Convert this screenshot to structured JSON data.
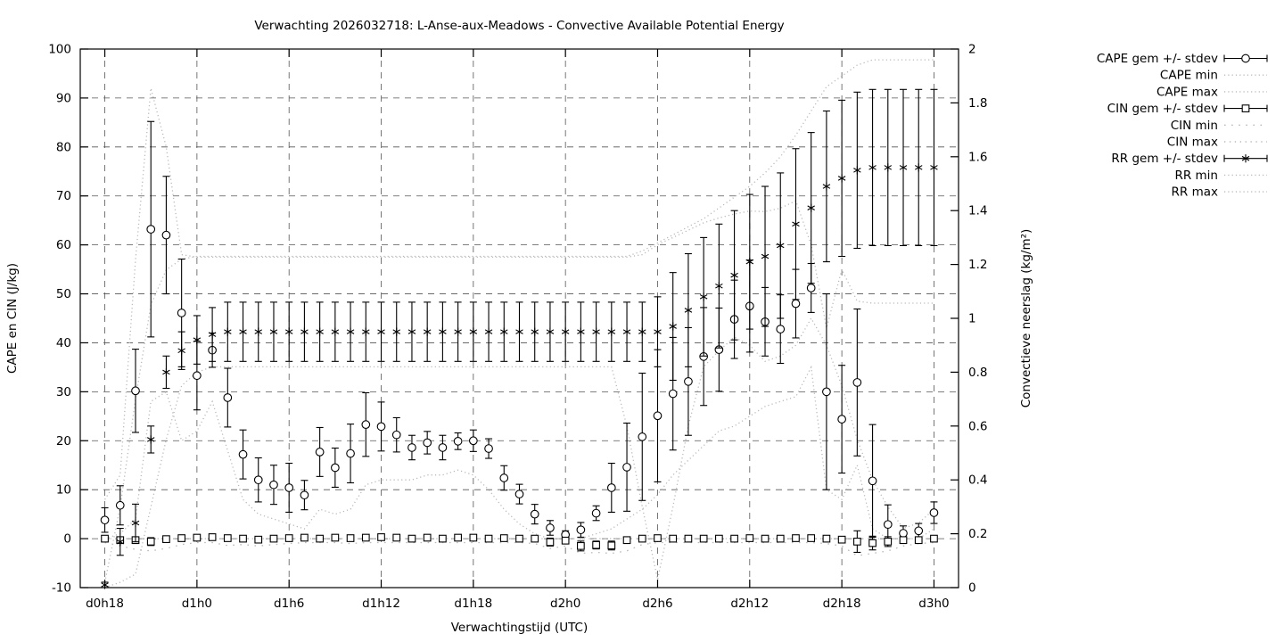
{
  "title": "Verwachting 2026032718: L-Anse-aux-Meadows - Convective Available Potential Energy",
  "axes": {
    "x_label": "Verwachtingstijd (UTC)",
    "y_left_label": "CAPE en CIN (J/kg)",
    "y_right_label": "Convectieve neerslag (kg/m²)",
    "y_left_range": [
      -10,
      100
    ],
    "y_right_range": [
      0,
      2
    ],
    "x_ticks": [
      {
        "hour": 18,
        "label": "d0h18"
      },
      {
        "hour": 24,
        "label": "d1h0"
      },
      {
        "hour": 30,
        "label": "d1h6"
      },
      {
        "hour": 36,
        "label": "d1h12"
      },
      {
        "hour": 42,
        "label": "d1h18"
      },
      {
        "hour": 48,
        "label": "d2h0"
      },
      {
        "hour": 54,
        "label": "d2h6"
      },
      {
        "hour": 60,
        "label": "d2h12"
      },
      {
        "hour": 66,
        "label": "d2h18"
      },
      {
        "hour": 72,
        "label": "d3h0"
      }
    ],
    "y_left_ticks": [
      {
        "v": -10,
        "label": "-10"
      },
      {
        "v": 0,
        "label": "0"
      },
      {
        "v": 10,
        "label": "10"
      },
      {
        "v": 20,
        "label": "20"
      },
      {
        "v": 30,
        "label": "30"
      },
      {
        "v": 40,
        "label": "40"
      },
      {
        "v": 50,
        "label": "50"
      },
      {
        "v": 60,
        "label": "60"
      },
      {
        "v": 70,
        "label": "70"
      },
      {
        "v": 80,
        "label": "80"
      },
      {
        "v": 90,
        "label": "90"
      },
      {
        "v": 100,
        "label": "100"
      }
    ],
    "y_right_ticks": [
      {
        "v": 0,
        "label": "0"
      },
      {
        "v": 0.2,
        "label": "0.2"
      },
      {
        "v": 0.4,
        "label": "0.4"
      },
      {
        "v": 0.6,
        "label": "0.6"
      },
      {
        "v": 0.8,
        "label": "0.8"
      },
      {
        "v": 1,
        "label": "1"
      },
      {
        "v": 1.2,
        "label": "1.2"
      },
      {
        "v": 1.4,
        "label": "1.4"
      },
      {
        "v": 1.6,
        "label": "1.6"
      },
      {
        "v": 1.8,
        "label": "1.8"
      },
      {
        "v": 2,
        "label": "2"
      }
    ],
    "grid": true,
    "legend_position": "outside-right"
  },
  "colors": {
    "foreground": "#000000",
    "envelope_dotted": "#b9b9b9",
    "grid": "#555555",
    "background": "#ffffff"
  },
  "legend": [
    {
      "label": "CAPE gem +/- stdev",
      "sample": "errorbar",
      "marker": "circle"
    },
    {
      "label": "CAPE min",
      "sample": "dotted",
      "series": "cape_min"
    },
    {
      "label": "CAPE max",
      "sample": "dotted",
      "series": "cape_max"
    },
    {
      "label": "CIN gem +/- stdev",
      "sample": "errorbar",
      "marker": "square"
    },
    {
      "label": "CIN min",
      "sample": "dotted-sparse",
      "series": "cin_min"
    },
    {
      "label": "CIN max",
      "sample": "dotted-mid",
      "series": "cin_max"
    },
    {
      "label": "RR gem +/- stdev",
      "sample": "errorbar",
      "marker": "asterisk"
    },
    {
      "label": "RR min",
      "sample": "dotted",
      "series": "rr_min"
    },
    {
      "label": "RR max",
      "sample": "dotted",
      "series": "rr_max"
    }
  ],
  "chart_data": {
    "type": "line",
    "title": "Verwachting 2026032718: L-Anse-aux-Meadows - Convective Available Potential Energy",
    "xlabel": "Verwachtingstijd (UTC)",
    "ylabel_left": "CAPE en CIN (J/kg)",
    "ylabel_right": "Convectieve neerslag (kg/m²)",
    "ylim_left": [
      -10,
      100
    ],
    "ylim_right": [
      0,
      2
    ],
    "xlim_hours": [
      16.4,
      73.6
    ],
    "x_hours": [
      18,
      19,
      20,
      21,
      22,
      23,
      24,
      25,
      26,
      27,
      28,
      29,
      30,
      31,
      32,
      33,
      34,
      35,
      36,
      37,
      38,
      39,
      40,
      41,
      42,
      43,
      44,
      45,
      46,
      47,
      48,
      49,
      50,
      51,
      52,
      53,
      54,
      55,
      56,
      57,
      58,
      59,
      60,
      61,
      62,
      63,
      64,
      65,
      66,
      67,
      68,
      69,
      70,
      71,
      72
    ],
    "series": [
      {
        "key": "cape_mean",
        "name": "CAPE gem +/- stdev",
        "axis": "left",
        "style": "errorbar",
        "marker": "circle",
        "mean": [
          3.8,
          6.8,
          30.2,
          63.2,
          62.0,
          46.1,
          33.3,
          38.5,
          28.8,
          17.2,
          12.0,
          11.0,
          10.4,
          8.9,
          17.7,
          14.5,
          17.4,
          23.3,
          22.9,
          21.2,
          18.6,
          19.6,
          18.6,
          19.9,
          20.0,
          18.4,
          12.4,
          9.1,
          5.0,
          2.2,
          0.8,
          1.8,
          5.2,
          10.4,
          14.6,
          20.8,
          25.1,
          29.6,
          32.1,
          37.2,
          38.6,
          44.8,
          47.5,
          44.3,
          42.8,
          48.0,
          51.2,
          30.0,
          24.4,
          31.9,
          11.8,
          2.9,
          1.1,
          1.6,
          5.3
        ],
        "stdev": [
          2.5,
          4.0,
          8.5,
          22.0,
          12.0,
          11.0,
          7.0,
          3.5,
          6.0,
          5.0,
          4.5,
          4.0,
          5.0,
          3.0,
          5.0,
          4.0,
          6.0,
          6.5,
          5.0,
          3.5,
          2.5,
          2.3,
          2.5,
          1.7,
          2.2,
          2.0,
          2.5,
          2.0,
          2.0,
          1.5,
          0.8,
          1.5,
          1.5,
          5.0,
          9.0,
          13.0,
          13.5,
          11.5,
          11.0,
          10.0,
          8.5,
          8.0,
          9.4,
          7.0,
          7.0,
          7.0,
          5.0,
          20.0,
          11.0,
          15.0,
          11.5,
          4.0,
          1.5,
          1.5,
          2.2
        ]
      },
      {
        "key": "cape_min",
        "name": "CAPE min",
        "axis": "left",
        "style": "dotted",
        "values": [
          0,
          1,
          4,
          28,
          30,
          20,
          22,
          28,
          18,
          8,
          5,
          4,
          3,
          2,
          6,
          5,
          6,
          11,
          12,
          12,
          12,
          13,
          13,
          14,
          13,
          10,
          6,
          3,
          1,
          0,
          0,
          0,
          1,
          2,
          4,
          6,
          9,
          13,
          16,
          19,
          22,
          23,
          25,
          27,
          28,
          29,
          35,
          10,
          8,
          15,
          2,
          0,
          0,
          0,
          2
        ]
      },
      {
        "key": "cape_max",
        "name": "CAPE max",
        "axis": "left",
        "style": "dotted",
        "values": [
          8,
          13,
          57,
          92,
          80,
          58,
          57.5,
          57.5,
          57.5,
          57.5,
          57.5,
          57.5,
          57.5,
          57.5,
          57.5,
          57.5,
          57.5,
          57.5,
          57.5,
          57.5,
          57.5,
          57.5,
          57.5,
          57.5,
          57.5,
          57.5,
          57.5,
          57.5,
          57.5,
          57.5,
          57.5,
          57.5,
          57.5,
          57.5,
          57.5,
          58,
          60,
          61.5,
          63,
          64.5,
          65.5,
          66.3,
          66.9,
          66.8,
          67.5,
          69,
          60,
          43,
          55,
          48.5,
          48.1,
          48.1,
          48.1,
          48.1,
          48.1
        ]
      },
      {
        "key": "cin_mean",
        "name": "CIN gem +/- stdev",
        "axis": "left",
        "style": "errorbar",
        "marker": "square",
        "mean": [
          0,
          -0.3,
          -0.3,
          -0.6,
          -0.1,
          0.1,
          0.2,
          0.3,
          0.1,
          0,
          -0.2,
          0,
          0.1,
          0.2,
          0,
          0.2,
          0.1,
          0.2,
          0.3,
          0.2,
          0,
          0.2,
          0,
          0.2,
          0.2,
          0,
          0.1,
          0,
          0,
          -0.7,
          -0.4,
          -1.5,
          -1.3,
          -1.4,
          -0.3,
          0,
          0.1,
          0,
          0,
          0,
          0,
          0,
          0.1,
          0,
          0,
          0.1,
          0.1,
          0,
          -0.2,
          -0.6,
          -0.9,
          -0.6,
          -0.3,
          -0.3,
          0
        ],
        "stdev": [
          0.1,
          0.3,
          0.5,
          0.8,
          0.4,
          0.2,
          0.15,
          0.15,
          0.4,
          0.2,
          0.3,
          0.15,
          0.15,
          0.15,
          0.15,
          0.15,
          0.15,
          0.15,
          0.15,
          0.15,
          0.15,
          0.15,
          0.15,
          0.15,
          0.15,
          0.15,
          0.15,
          0.15,
          0.2,
          0.8,
          0.5,
          1.0,
          0.8,
          0.9,
          0.4,
          0.2,
          0.15,
          0.15,
          0.15,
          0.15,
          0.15,
          0.15,
          0.15,
          0.15,
          0.15,
          0.15,
          0.15,
          0.2,
          0.5,
          2.2,
          1.4,
          1.0,
          0.5,
          0.4,
          0.2
        ]
      },
      {
        "key": "cin_min",
        "name": "CIN min",
        "axis": "left",
        "style": "dotted-sparse",
        "values": [
          -0.8,
          -1.5,
          -2.2,
          -2.5,
          -2.0,
          -1.2,
          -0.8,
          -0.8,
          -1.4,
          -1.2,
          -1.5,
          -1.2,
          -1.0,
          -0.8,
          -0.8,
          -0.8,
          -1.0,
          -0.8,
          -0.8,
          -0.8,
          -0.8,
          -0.8,
          -0.8,
          -0.8,
          -0.8,
          -0.8,
          -0.8,
          -0.8,
          -1.0,
          -2.0,
          -1.5,
          -3.0,
          -2.8,
          -3.0,
          -2.5,
          -1.2,
          -0.8,
          -0.8,
          -0.8,
          -0.8,
          -0.8,
          -0.8,
          -0.8,
          -0.8,
          -0.8,
          -0.8,
          -0.8,
          -1.0,
          -1.5,
          -3.5,
          -3.0,
          -2.5,
          -1.5,
          -1.0,
          -0.8
        ]
      },
      {
        "key": "cin_max",
        "name": "CIN max",
        "axis": "left",
        "style": "dotted-mid",
        "values": [
          0,
          0,
          0,
          0,
          0,
          0,
          0,
          0,
          0,
          0,
          0,
          0,
          0,
          0,
          0,
          0,
          0,
          0,
          0,
          0,
          0,
          0,
          0,
          0,
          0,
          0,
          0,
          0,
          0,
          0,
          0,
          0,
          0,
          0,
          0,
          0,
          0,
          0,
          0,
          0,
          0,
          0,
          0,
          0,
          0,
          0,
          0,
          0,
          0,
          0,
          0,
          0,
          0,
          0,
          0
        ]
      },
      {
        "key": "rr_mean",
        "name": "RR gem +/- stdev",
        "axis": "right",
        "style": "errorbar",
        "marker": "asterisk",
        "mean": [
          0.01,
          0.17,
          0.24,
          0.55,
          0.8,
          0.88,
          0.92,
          0.94,
          0.95,
          0.95,
          0.95,
          0.95,
          0.95,
          0.95,
          0.95,
          0.95,
          0.95,
          0.95,
          0.95,
          0.95,
          0.95,
          0.95,
          0.95,
          0.95,
          0.95,
          0.95,
          0.95,
          0.95,
          0.95,
          0.95,
          0.95,
          0.95,
          0.95,
          0.95,
          0.95,
          0.95,
          0.95,
          0.97,
          1.03,
          1.08,
          1.12,
          1.16,
          1.21,
          1.23,
          1.27,
          1.35,
          1.41,
          1.49,
          1.52,
          1.55,
          1.56,
          1.56,
          1.56,
          1.56,
          1.56
        ],
        "stdev": [
          0.01,
          0.05,
          0.07,
          0.05,
          0.06,
          0.07,
          0.09,
          0.1,
          0.11,
          0.11,
          0.11,
          0.11,
          0.11,
          0.11,
          0.11,
          0.11,
          0.11,
          0.11,
          0.11,
          0.11,
          0.11,
          0.11,
          0.11,
          0.11,
          0.11,
          0.11,
          0.11,
          0.11,
          0.11,
          0.11,
          0.11,
          0.11,
          0.11,
          0.11,
          0.11,
          0.11,
          0.13,
          0.2,
          0.21,
          0.22,
          0.23,
          0.24,
          0.25,
          0.26,
          0.27,
          0.28,
          0.28,
          0.28,
          0.29,
          0.29,
          0.29,
          0.29,
          0.29,
          0.29,
          0.29
        ]
      },
      {
        "key": "rr_min",
        "name": "RR min",
        "axis": "right",
        "style": "dotted",
        "values": [
          0.0,
          0.02,
          0.05,
          0.3,
          0.55,
          0.75,
          0.8,
          0.82,
          0.82,
          0.82,
          0.82,
          0.82,
          0.82,
          0.82,
          0.82,
          0.82,
          0.82,
          0.82,
          0.82,
          0.82,
          0.82,
          0.82,
          0.82,
          0.82,
          0.82,
          0.82,
          0.82,
          0.82,
          0.82,
          0.82,
          0.82,
          0.82,
          0.82,
          0.82,
          0.6,
          0.3,
          0.03,
          0.3,
          0.6,
          0.82,
          0.88,
          0.93,
          0.9,
          0.84,
          0.86,
          0.9,
          1.0,
          0.9,
          0.75,
          0.55,
          0.4,
          0.3,
          0.22,
          0.24,
          0.29
        ]
      },
      {
        "key": "rr_max",
        "name": "RR max",
        "axis": "right",
        "style": "dotted",
        "values": [
          0.02,
          0.3,
          0.7,
          1.05,
          1.18,
          1.22,
          1.23,
          1.23,
          1.23,
          1.23,
          1.23,
          1.23,
          1.23,
          1.23,
          1.23,
          1.23,
          1.23,
          1.23,
          1.23,
          1.23,
          1.23,
          1.23,
          1.23,
          1.23,
          1.23,
          1.23,
          1.23,
          1.23,
          1.23,
          1.23,
          1.23,
          1.23,
          1.23,
          1.23,
          1.23,
          1.25,
          1.28,
          1.31,
          1.34,
          1.37,
          1.41,
          1.45,
          1.49,
          1.54,
          1.6,
          1.68,
          1.77,
          1.86,
          1.9,
          1.94,
          1.96,
          1.96,
          1.96,
          1.96,
          1.96
        ]
      }
    ]
  }
}
